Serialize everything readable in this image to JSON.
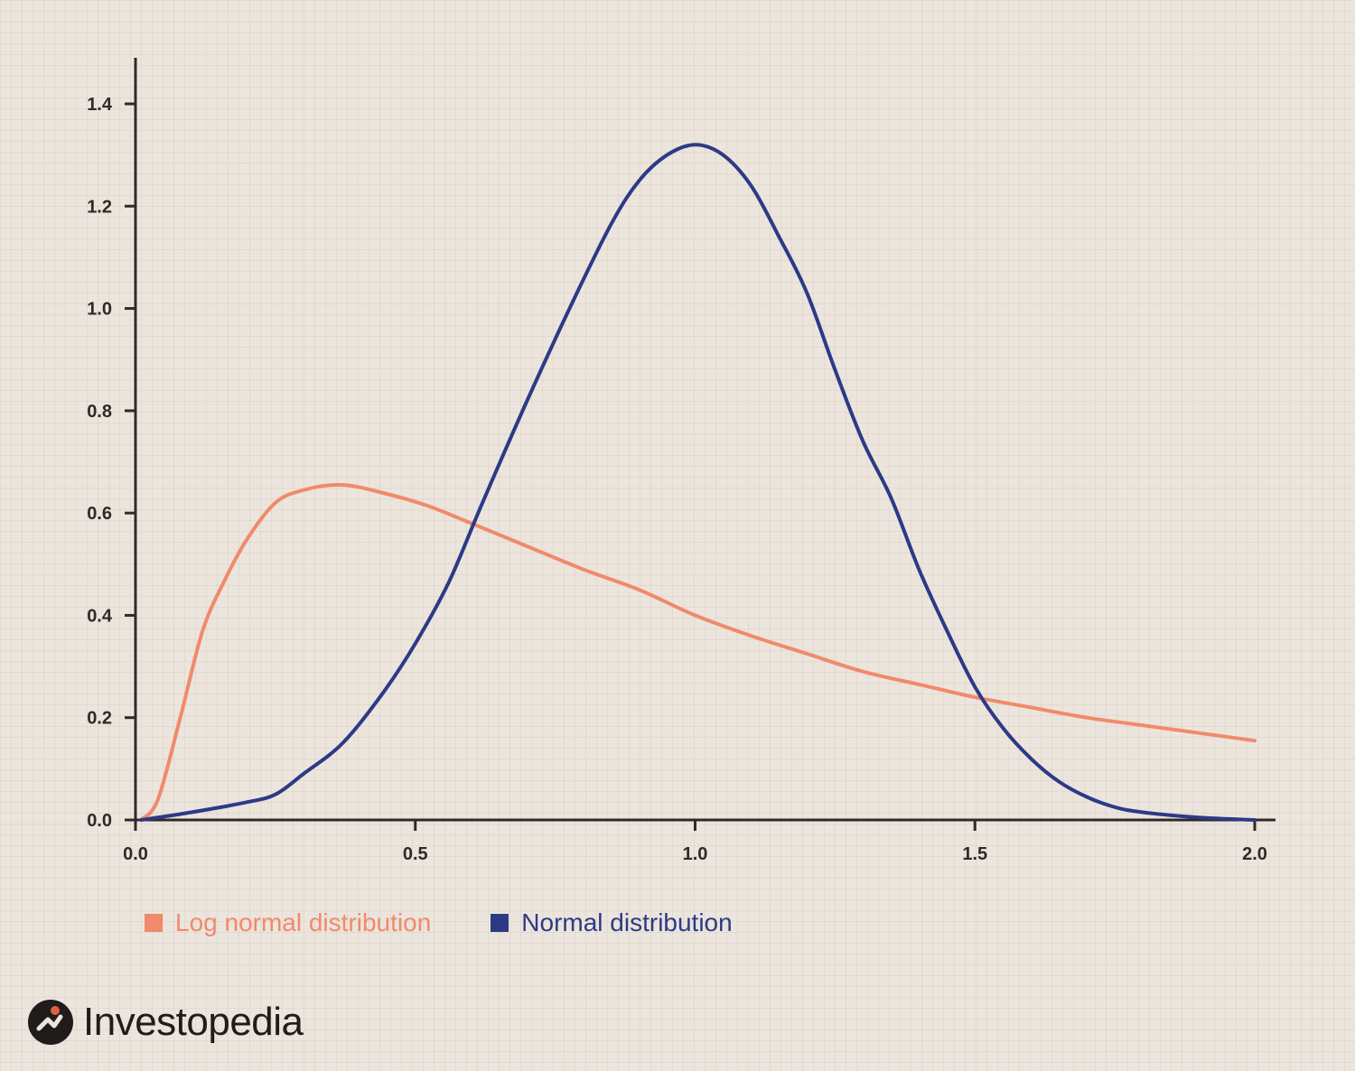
{
  "chart_data": {
    "type": "line",
    "xlim": [
      0,
      2.0
    ],
    "ylim": [
      0,
      1.48
    ],
    "x_ticks": [
      "0.0",
      "0.5",
      "1.0",
      "1.5",
      "2.0"
    ],
    "x_tick_values": [
      0,
      0.5,
      1.0,
      1.5,
      2.0
    ],
    "y_ticks": [
      "0.0",
      "0.2",
      "0.4",
      "0.6",
      "0.8",
      "1.0",
      "1.2",
      "1.4"
    ],
    "y_tick_values": [
      0,
      0.2,
      0.4,
      0.6,
      0.8,
      1.0,
      1.2,
      1.4
    ],
    "grid": false,
    "legend_position": "bottom-left",
    "series": [
      {
        "name": "Log normal distribution",
        "color": "#f08a6b",
        "points": [
          [
            0.01,
            0.0
          ],
          [
            0.04,
            0.04
          ],
          [
            0.08,
            0.2
          ],
          [
            0.12,
            0.37
          ],
          [
            0.16,
            0.47
          ],
          [
            0.2,
            0.55
          ],
          [
            0.25,
            0.62
          ],
          [
            0.3,
            0.645
          ],
          [
            0.37,
            0.655
          ],
          [
            0.44,
            0.64
          ],
          [
            0.52,
            0.615
          ],
          [
            0.6,
            0.58
          ],
          [
            0.7,
            0.535
          ],
          [
            0.8,
            0.49
          ],
          [
            0.9,
            0.45
          ],
          [
            1.0,
            0.4
          ],
          [
            1.1,
            0.36
          ],
          [
            1.2,
            0.325
          ],
          [
            1.3,
            0.29
          ],
          [
            1.4,
            0.265
          ],
          [
            1.5,
            0.24
          ],
          [
            1.6,
            0.22
          ],
          [
            1.7,
            0.2
          ],
          [
            1.8,
            0.185
          ],
          [
            1.9,
            0.17
          ],
          [
            2.0,
            0.155
          ]
        ]
      },
      {
        "name": "Normal distribution",
        "color": "#2c3a86",
        "points": [
          [
            0.01,
            0.0
          ],
          [
            0.1,
            0.015
          ],
          [
            0.2,
            0.035
          ],
          [
            0.25,
            0.05
          ],
          [
            0.3,
            0.09
          ],
          [
            0.37,
            0.15
          ],
          [
            0.44,
            0.245
          ],
          [
            0.5,
            0.345
          ],
          [
            0.56,
            0.465
          ],
          [
            0.62,
            0.62
          ],
          [
            0.7,
            0.82
          ],
          [
            0.78,
            1.01
          ],
          [
            0.85,
            1.165
          ],
          [
            0.9,
            1.25
          ],
          [
            0.95,
            1.3
          ],
          [
            1.0,
            1.32
          ],
          [
            1.05,
            1.3
          ],
          [
            1.1,
            1.24
          ],
          [
            1.15,
            1.14
          ],
          [
            1.2,
            1.03
          ],
          [
            1.25,
            0.88
          ],
          [
            1.3,
            0.74
          ],
          [
            1.35,
            0.63
          ],
          [
            1.4,
            0.49
          ],
          [
            1.45,
            0.37
          ],
          [
            1.5,
            0.26
          ],
          [
            1.55,
            0.18
          ],
          [
            1.6,
            0.12
          ],
          [
            1.65,
            0.075
          ],
          [
            1.7,
            0.045
          ],
          [
            1.75,
            0.025
          ],
          [
            1.8,
            0.015
          ],
          [
            1.9,
            0.005
          ],
          [
            2.0,
            0.0
          ]
        ]
      }
    ]
  },
  "legend": {
    "items": [
      {
        "label": "Log normal distribution",
        "color": "#f08a6b"
      },
      {
        "label": "Normal distribution",
        "color": "#2c3a86"
      }
    ]
  },
  "branding": {
    "logo_text": "Investopedia",
    "logo_mark_color": "#1f1c1b",
    "logo_dot_color": "#e0603c"
  }
}
